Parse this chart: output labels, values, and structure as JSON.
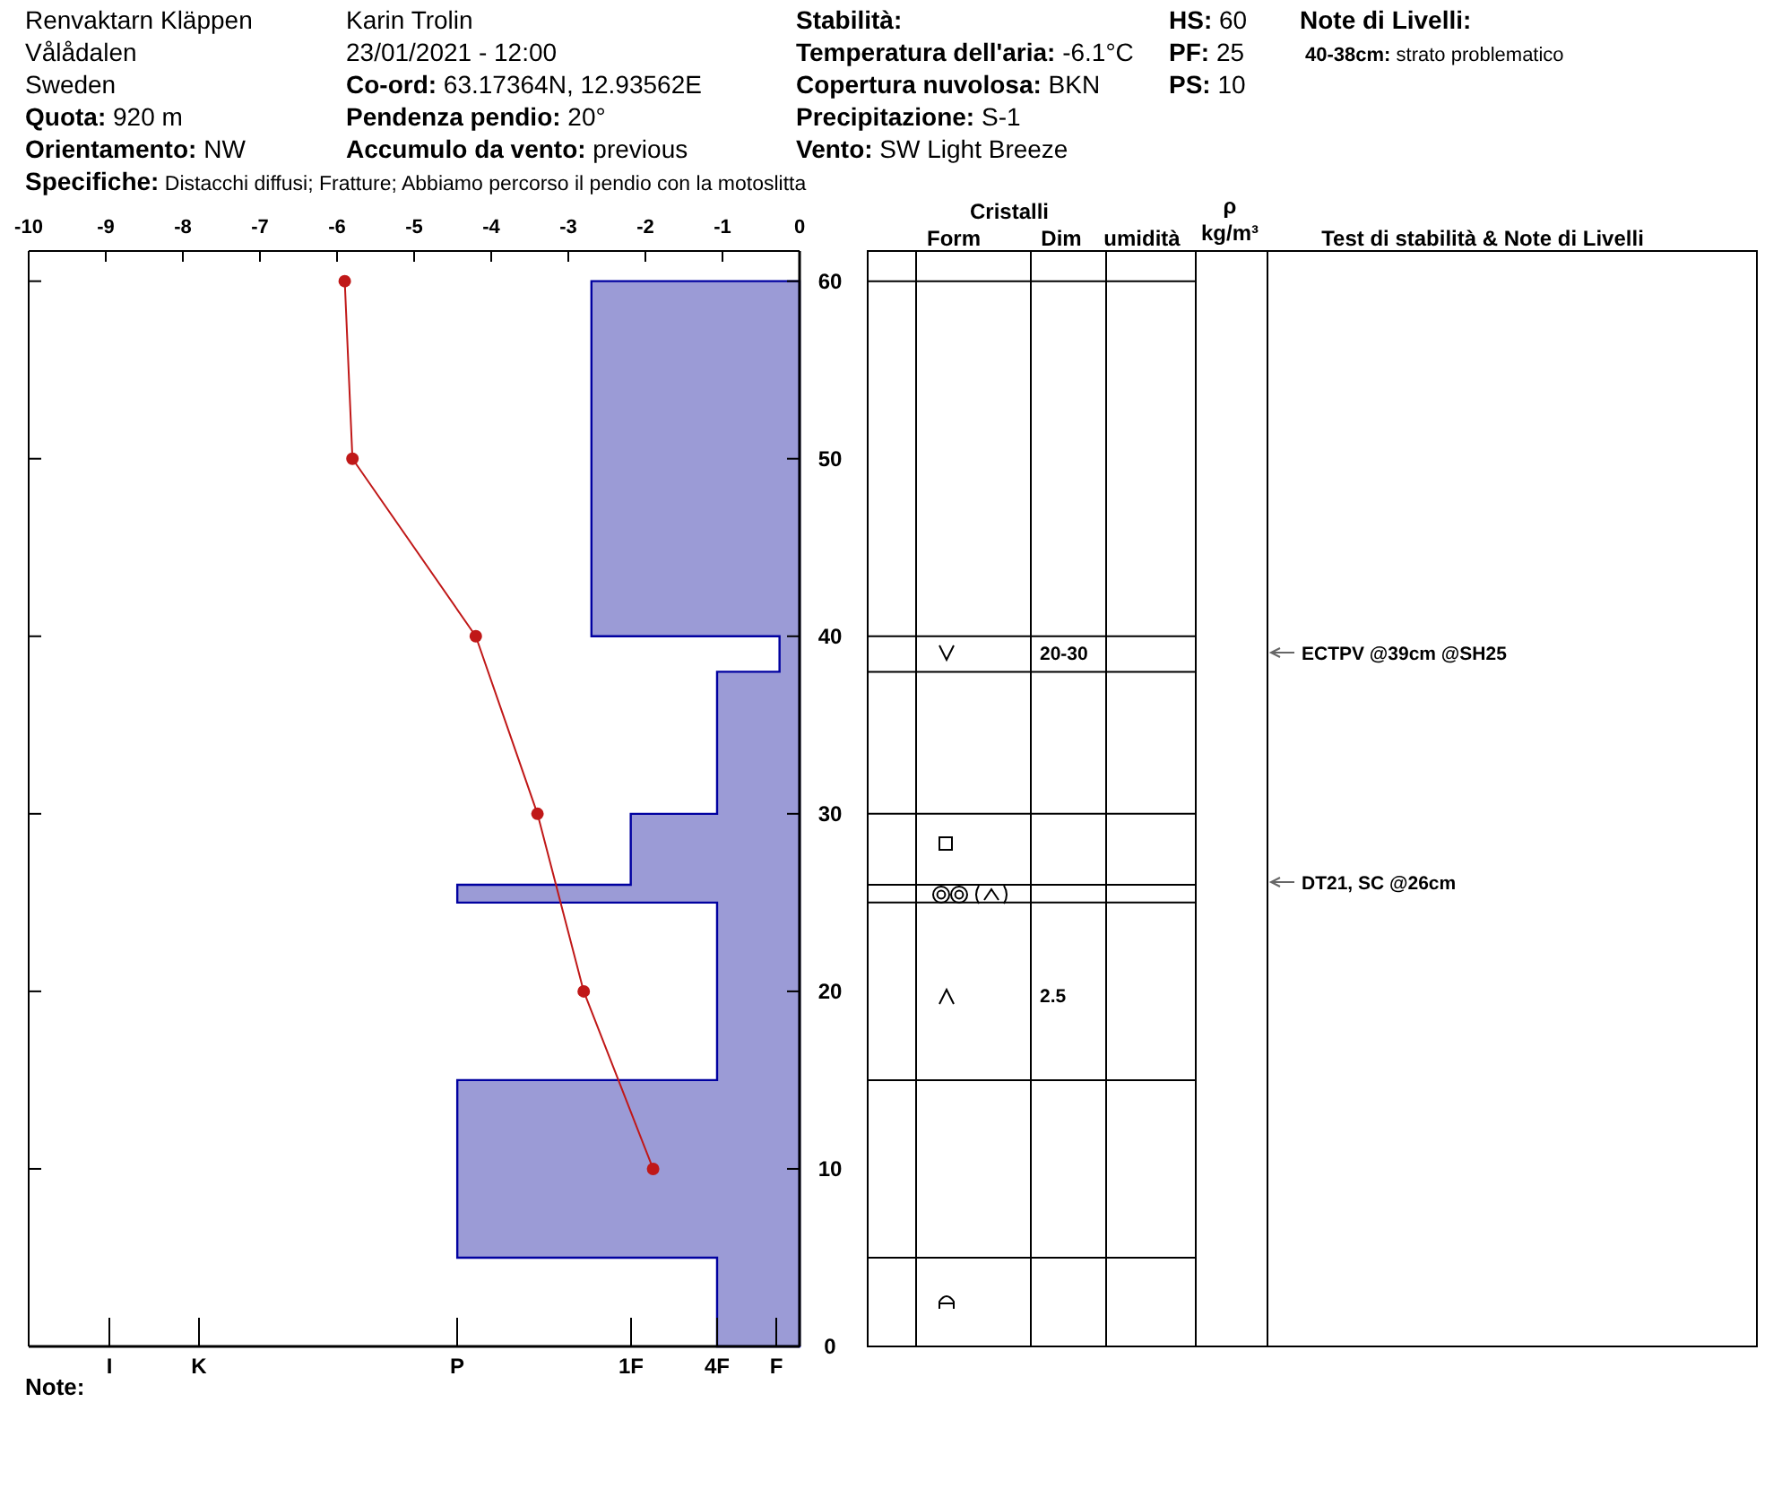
{
  "chart_data": {
    "type": "line",
    "xlim": [
      -10,
      0
    ],
    "ylim": [
      0,
      61.7
    ],
    "xticks": [
      -10,
      -9,
      -8,
      -7,
      -6,
      -5,
      -4,
      -3,
      -2,
      -1,
      0
    ],
    "yticks": [
      0,
      10,
      20,
      30,
      40,
      50,
      60
    ],
    "line_style": "solid",
    "series": [
      {
        "type": "area",
        "color": "#9b9bd6",
        "x": [
          0,
          -2.7,
          -2.7,
          -0.26,
          -0.26,
          -1.07,
          -1.07,
          -2.19,
          -2.19,
          -4.44,
          -4.44,
          -1.07,
          -1.07,
          -4.44,
          -4.44,
          -1.07,
          -1.07,
          0
        ],
        "values": [
          60,
          60,
          40,
          40,
          38,
          38,
          30,
          30,
          26,
          26,
          25,
          25,
          15,
          15,
          5,
          5,
          0,
          0
        ]
      },
      {
        "marker": "circle",
        "color": "#c01818",
        "x": [
          -5.9,
          -5.8,
          -4.2,
          -3.4,
          -2.8,
          -1.9
        ],
        "values": [
          60,
          50,
          40,
          30,
          20,
          10
        ]
      }
    ],
    "annotations": [
      "Renvaktarn Kläppen",
      "Vålådalen",
      "Sweden",
      "Quota: 920 m",
      "Orientamento: NW",
      "Specifiche: Distacchi diffusi;  Fratture;  Abbiamo percorso il pendio con la motoslitta",
      "Karin Trolin",
      "23/01/2021 - 12:00",
      "Co-ord: 63.17364N, 12.93562E",
      "Pendenza pendio: 20°",
      "Accumulo da vento: previous",
      "Stabilità:",
      "Temperatura dell'aria: -6.1°C",
      "Copertura nuvolosa: BKN",
      "Precipitazione: S-1",
      "Vento:  SW Light Breeze",
      "HS: 60",
      "PF: 25",
      "PS: 10",
      "Note di Livelli:",
      "40-38cm: strato problematico",
      "Cristalli",
      "Form",
      "Dim",
      "umidità",
      "ρ",
      "kg/m³",
      "Test di stabilità & Note di Livelli",
      "Note:",
      "I",
      "K",
      "P",
      "1F",
      "4F",
      "F",
      "20-30",
      "2.5",
      "ECTPV @39cm  @SH25",
      "DT21, SC @26cm"
    ]
  }
}
